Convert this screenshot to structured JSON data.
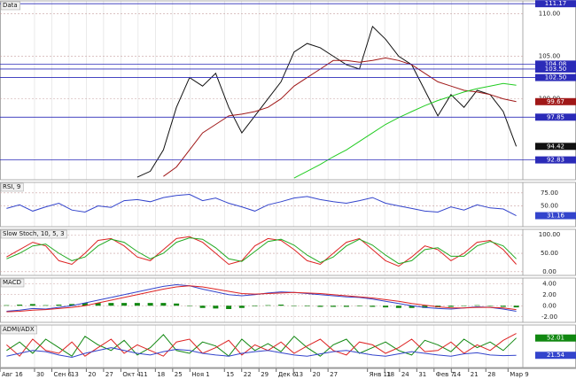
{
  "chart_data": [
    {
      "type": "line",
      "title": "Data",
      "ylim": [
        90.5,
        111.5
      ],
      "yticks": [
        {
          "value": 110,
          "label": "110.00"
        },
        {
          "value": 105,
          "label": "105.00"
        },
        {
          "value": 100,
          "label": "100.00"
        }
      ],
      "levels": [
        111.17,
        104.08,
        {
          "value": 103.5,
          "label": "103.50"
        },
        {
          "value": 102.5,
          "label": "102.50"
        },
        97.85,
        92.83
      ],
      "level_color": "#2b2bb8",
      "series": [
        {
          "name": "Price",
          "color": "#111111",
          "last_label": true,
          "values": [
            null,
            null,
            null,
            null,
            null,
            null,
            null,
            null,
            null,
            null,
            90.8,
            91.5,
            94,
            99,
            102.5,
            101.5,
            103,
            99,
            96,
            98,
            100,
            102,
            105.5,
            106.5,
            106,
            105,
            104,
            103.5,
            108.5,
            107,
            105,
            104,
            101,
            98,
            100.5,
            99,
            101,
            100.5,
            98.5,
            94.42
          ]
        },
        {
          "name": "MA",
          "color": "#a01818",
          "last_label": true,
          "values": [
            null,
            null,
            null,
            null,
            null,
            null,
            null,
            null,
            null,
            null,
            null,
            null,
            90.9,
            92,
            94,
            96,
            97,
            98,
            98.2,
            98.5,
            99,
            100,
            101.5,
            102.5,
            103.5,
            104.5,
            104.5,
            104.3,
            104.5,
            104.8,
            104.5,
            104,
            103,
            102,
            101.5,
            101,
            100.8,
            100.5,
            100,
            99.67
          ]
        },
        {
          "name": "MA2",
          "color": "#22cc22",
          "last_label": false,
          "values": [
            null,
            null,
            null,
            null,
            null,
            null,
            null,
            null,
            null,
            null,
            null,
            null,
            null,
            null,
            null,
            null,
            null,
            null,
            null,
            null,
            null,
            null,
            90.7,
            91.5,
            92.3,
            93.2,
            94,
            95,
            96,
            97,
            97.8,
            98.5,
            99.2,
            99.8,
            100.3,
            100.8,
            101.2,
            101.5,
            101.8,
            101.6
          ]
        }
      ]
    },
    {
      "type": "line",
      "title": "RSI, 9",
      "ylim": [
        10,
        95
      ],
      "yticks": [
        {
          "value": 75,
          "label": "75.00"
        },
        {
          "value": 50,
          "label": "50.00"
        }
      ],
      "series": [
        {
          "name": "RSI",
          "color": "#3344cc",
          "last_label": true,
          "values": [
            45,
            52,
            40,
            48,
            55,
            42,
            38,
            50,
            47,
            60,
            62,
            58,
            66,
            70,
            72,
            60,
            65,
            55,
            48,
            40,
            52,
            58,
            65,
            68,
            62,
            58,
            55,
            60,
            66,
            55,
            50,
            45,
            40,
            38,
            48,
            42,
            52,
            46,
            44,
            31.16
          ]
        }
      ]
    },
    {
      "type": "line",
      "title": "Slow Stoch, 10, 5, 3",
      "ylim": [
        -10,
        115
      ],
      "yticks": [
        {
          "value": 100,
          "label": "100.00"
        },
        {
          "value": 50,
          "label": "50.00"
        },
        {
          "value": 0,
          "label": "0.00"
        }
      ],
      "series": [
        {
          "name": "K",
          "color": "#dd2222",
          "last_label": false,
          "values": [
            40,
            60,
            80,
            70,
            30,
            20,
            50,
            85,
            90,
            70,
            40,
            30,
            60,
            90,
            95,
            80,
            50,
            20,
            30,
            70,
            90,
            85,
            60,
            30,
            20,
            50,
            80,
            90,
            60,
            30,
            15,
            40,
            70,
            60,
            30,
            50,
            80,
            85,
            60,
            20
          ]
        },
        {
          "name": "D",
          "color": "#22aa22",
          "last_label": false,
          "values": [
            35,
            50,
            70,
            75,
            50,
            30,
            40,
            70,
            88,
            80,
            55,
            35,
            50,
            80,
            92,
            88,
            65,
            35,
            28,
            55,
            82,
            88,
            72,
            45,
            25,
            40,
            70,
            88,
            72,
            45,
            22,
            30,
            60,
            65,
            42,
            42,
            70,
            82,
            70,
            35
          ]
        }
      ]
    },
    {
      "type": "line",
      "title": "MACD",
      "ylim": [
        -3,
        5
      ],
      "yticks": [
        {
          "value": 4,
          "label": "4.00"
        },
        {
          "value": 2,
          "label": "2.00"
        },
        {
          "value": 0,
          "label": "0.00"
        },
        {
          "value": -2,
          "label": "-2.00"
        }
      ],
      "series": [
        {
          "name": "Histogram",
          "color": "#118811",
          "style": "bar",
          "last_label": false,
          "values": [
            0.1,
            0.2,
            0.3,
            0.1,
            0.2,
            0.3,
            0.5,
            0.5,
            0.5,
            0.5,
            0.5,
            0.5,
            0.5,
            0.4,
            0,
            -0.4,
            -0.5,
            -0.6,
            -0.4,
            -0.1,
            0.1,
            0.2,
            0,
            -0.1,
            -0.2,
            -0.2,
            -0.2,
            -0.1,
            -0.2,
            -0.3,
            -0.4,
            -0.4,
            -0.4,
            -0.3,
            -0.2,
            0,
            0.1,
            0,
            -0.2,
            -0.3
          ]
        },
        {
          "name": "MACD",
          "color": "#3344cc",
          "last_label": false,
          "values": [
            -1,
            -0.8,
            -0.5,
            -0.6,
            -0.3,
            0,
            0.5,
            1,
            1.5,
            2,
            2.5,
            3,
            3.5,
            3.8,
            3.6,
            3,
            2.5,
            2,
            1.8,
            2,
            2.3,
            2.5,
            2.4,
            2.2,
            2,
            1.8,
            1.6,
            1.5,
            1.2,
            0.8,
            0.4,
            0,
            -0.3,
            -0.5,
            -0.6,
            -0.4,
            -0.2,
            -0.3,
            -0.6,
            -1
          ]
        },
        {
          "name": "Signal",
          "color": "#dd2222",
          "last_label": false,
          "values": [
            -1.1,
            -1,
            -0.8,
            -0.7,
            -0.5,
            -0.3,
            0,
            0.5,
            1,
            1.5,
            2,
            2.5,
            3,
            3.4,
            3.6,
            3.4,
            3,
            2.6,
            2.2,
            2.1,
            2.2,
            2.3,
            2.4,
            2.3,
            2.2,
            2,
            1.8,
            1.6,
            1.4,
            1.1,
            0.8,
            0.4,
            0.1,
            -0.2,
            -0.4,
            -0.4,
            -0.3,
            -0.3,
            -0.4,
            -0.7
          ]
        }
      ]
    },
    {
      "type": "line",
      "title": "ADMI/ADX",
      "ylim": [
        0,
        75
      ],
      "yticks": [],
      "series": [
        {
          "name": "+DI",
          "color": "#118811",
          "last_label": true,
          "values": [
            30,
            45,
            25,
            50,
            35,
            20,
            55,
            40,
            30,
            48,
            22,
            35,
            58,
            30,
            25,
            45,
            38,
            20,
            50,
            30,
            42,
            28,
            55,
            35,
            20,
            40,
            50,
            25,
            35,
            45,
            30,
            22,
            48,
            40,
            28,
            50,
            35,
            45,
            30,
            52.01
          ]
        },
        {
          "name": "-DI",
          "color": "#dd2222",
          "last_label": false,
          "values": [
            40,
            20,
            50,
            30,
            25,
            45,
            20,
            35,
            50,
            25,
            40,
            30,
            20,
            45,
            50,
            25,
            35,
            48,
            22,
            40,
            30,
            45,
            25,
            38,
            50,
            30,
            22,
            45,
            40,
            25,
            35,
            50,
            28,
            30,
            45,
            25,
            40,
            30,
            48,
            60
          ]
        },
        {
          "name": "ADX",
          "color": "#3344cc",
          "last_label": true,
          "values": [
            20,
            25,
            30,
            28,
            22,
            18,
            25,
            30,
            35,
            30,
            25,
            22,
            28,
            32,
            30,
            25,
            22,
            20,
            25,
            28,
            30,
            26,
            22,
            20,
            24,
            28,
            30,
            26,
            22,
            20,
            24,
            28,
            25,
            22,
            20,
            24,
            26,
            22,
            21,
            21.54
          ]
        }
      ]
    }
  ],
  "x_axis": {
    "xlim": [
      0,
      212
    ],
    "xticks": [
      {
        "value": 0,
        "label": "Авг 16"
      },
      {
        "value": 14,
        "label": "30"
      },
      {
        "value": 21,
        "label": "Сен 6"
      },
      {
        "value": 28,
        "label": "13"
      },
      {
        "value": 35,
        "label": "20"
      },
      {
        "value": 42,
        "label": "27"
      },
      {
        "value": 49,
        "label": "Окт 4"
      },
      {
        "value": 56,
        "label": "11"
      },
      {
        "value": 63,
        "label": "18"
      },
      {
        "value": 70,
        "label": "25"
      },
      {
        "value": 77,
        "label": "Ноя 1"
      },
      {
        "value": 91,
        "label": "15"
      },
      {
        "value": 98,
        "label": "22"
      },
      {
        "value": 105,
        "label": "29"
      },
      {
        "value": 112,
        "label": "Дек 6"
      },
      {
        "value": 119,
        "label": "13"
      },
      {
        "value": 126,
        "label": "20"
      },
      {
        "value": 133,
        "label": "27"
      },
      {
        "value": 149,
        "label": "Янв 11"
      },
      {
        "value": 156,
        "label": "18"
      },
      {
        "value": 162,
        "label": "24"
      },
      {
        "value": 169,
        "label": "31"
      },
      {
        "value": 176,
        "label": "Фев 7"
      },
      {
        "value": 183,
        "label": "14"
      },
      {
        "value": 190,
        "label": "21"
      },
      {
        "value": 197,
        "label": "28"
      },
      {
        "value": 206,
        "label": "Мар 9"
      }
    ]
  }
}
